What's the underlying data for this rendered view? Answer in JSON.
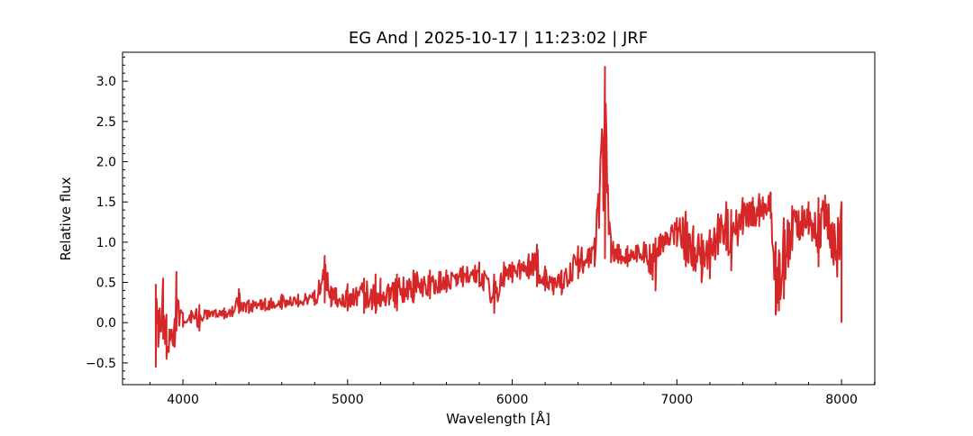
{
  "chart_data": {
    "type": "line",
    "title": "EG And | 2025-10-17 | 11:23:02 | JRF",
    "xlabel": "Wavelength [Å]",
    "ylabel": "Relative flux",
    "xlim": [
      3633,
      8202
    ],
    "ylim": [
      -0.77,
      3.36
    ],
    "xticks": [
      4000,
      5000,
      6000,
      7000,
      8000
    ],
    "xtick_labels": [
      "4000",
      "5000",
      "6000",
      "7000",
      "8000"
    ],
    "yticks": [
      -0.5,
      0.0,
      0.5,
      1.0,
      1.5,
      2.0,
      2.5,
      3.0
    ],
    "ytick_labels": [
      "−0.5",
      "0.0",
      "0.5",
      "1.0",
      "1.5",
      "2.0",
      "2.5",
      "3.0"
    ],
    "grid": false,
    "series": [
      {
        "name": "spectrum",
        "color": "#d62728",
        "envelope_columns": [
          "wavelength",
          "flux_low",
          "flux_high"
        ],
        "envelope": [
          [
            3835,
            -0.55,
            0.48
          ],
          [
            3850,
            -0.3,
            0.15
          ],
          [
            3880,
            -0.2,
            0.55
          ],
          [
            3900,
            -0.45,
            0.1
          ],
          [
            3950,
            -0.3,
            0.05
          ],
          [
            3960,
            -0.1,
            0.63
          ],
          [
            4000,
            -0.05,
            0.12
          ],
          [
            4050,
            0.0,
            0.15
          ],
          [
            4100,
            -0.1,
            0.22
          ],
          [
            4150,
            0.05,
            0.15
          ],
          [
            4200,
            0.07,
            0.16
          ],
          [
            4250,
            0.05,
            0.18
          ],
          [
            4300,
            0.08,
            0.2
          ],
          [
            4340,
            0.12,
            0.42
          ],
          [
            4400,
            0.12,
            0.28
          ],
          [
            4500,
            0.15,
            0.3
          ],
          [
            4600,
            0.17,
            0.35
          ],
          [
            4700,
            0.2,
            0.35
          ],
          [
            4800,
            0.22,
            0.4
          ],
          [
            4861,
            0.25,
            0.83
          ],
          [
            4900,
            0.2,
            0.45
          ],
          [
            5000,
            0.15,
            0.48
          ],
          [
            5100,
            0.12,
            0.55
          ],
          [
            5170,
            0.12,
            0.6
          ],
          [
            5200,
            0.2,
            0.55
          ],
          [
            5300,
            0.15,
            0.6
          ],
          [
            5400,
            0.25,
            0.65
          ],
          [
            5500,
            0.3,
            0.65
          ],
          [
            5600,
            0.38,
            0.65
          ],
          [
            5700,
            0.45,
            0.7
          ],
          [
            5800,
            0.45,
            0.75
          ],
          [
            5890,
            0.12,
            0.6
          ],
          [
            5950,
            0.45,
            0.75
          ],
          [
            6000,
            0.5,
            0.75
          ],
          [
            6100,
            0.55,
            0.85
          ],
          [
            6150,
            0.45,
            0.97
          ],
          [
            6200,
            0.4,
            0.7
          ],
          [
            6250,
            0.35,
            0.55
          ],
          [
            6300,
            0.35,
            0.65
          ],
          [
            6400,
            0.55,
            0.95
          ],
          [
            6500,
            0.7,
            1.05
          ],
          [
            6563,
            0.8,
            3.18
          ],
          [
            6600,
            0.75,
            1.05
          ],
          [
            6700,
            0.7,
            0.95
          ],
          [
            6800,
            0.75,
            1.0
          ],
          [
            6870,
            0.4,
            1.05
          ],
          [
            6900,
            0.85,
            1.1
          ],
          [
            7000,
            0.95,
            1.3
          ],
          [
            7054,
            0.7,
            1.38
          ],
          [
            7100,
            0.65,
            1.2
          ],
          [
            7150,
            0.5,
            1.1
          ],
          [
            7200,
            0.55,
            1.15
          ],
          [
            7250,
            0.85,
            1.35
          ],
          [
            7300,
            0.9,
            1.5
          ],
          [
            7330,
            0.65,
            1.4
          ],
          [
            7400,
            1.1,
            1.55
          ],
          [
            7500,
            1.2,
            1.6
          ],
          [
            7570,
            1.3,
            1.62
          ],
          [
            7600,
            0.1,
            1.0
          ],
          [
            7620,
            0.15,
            0.9
          ],
          [
            7650,
            0.3,
            1.3
          ],
          [
            7700,
            0.9,
            1.45
          ],
          [
            7800,
            1.1,
            1.5
          ],
          [
            7860,
            0.7,
            1.55
          ],
          [
            7900,
            1.2,
            1.58
          ],
          [
            8000,
            0.0,
            1.5
          ]
        ]
      }
    ]
  }
}
